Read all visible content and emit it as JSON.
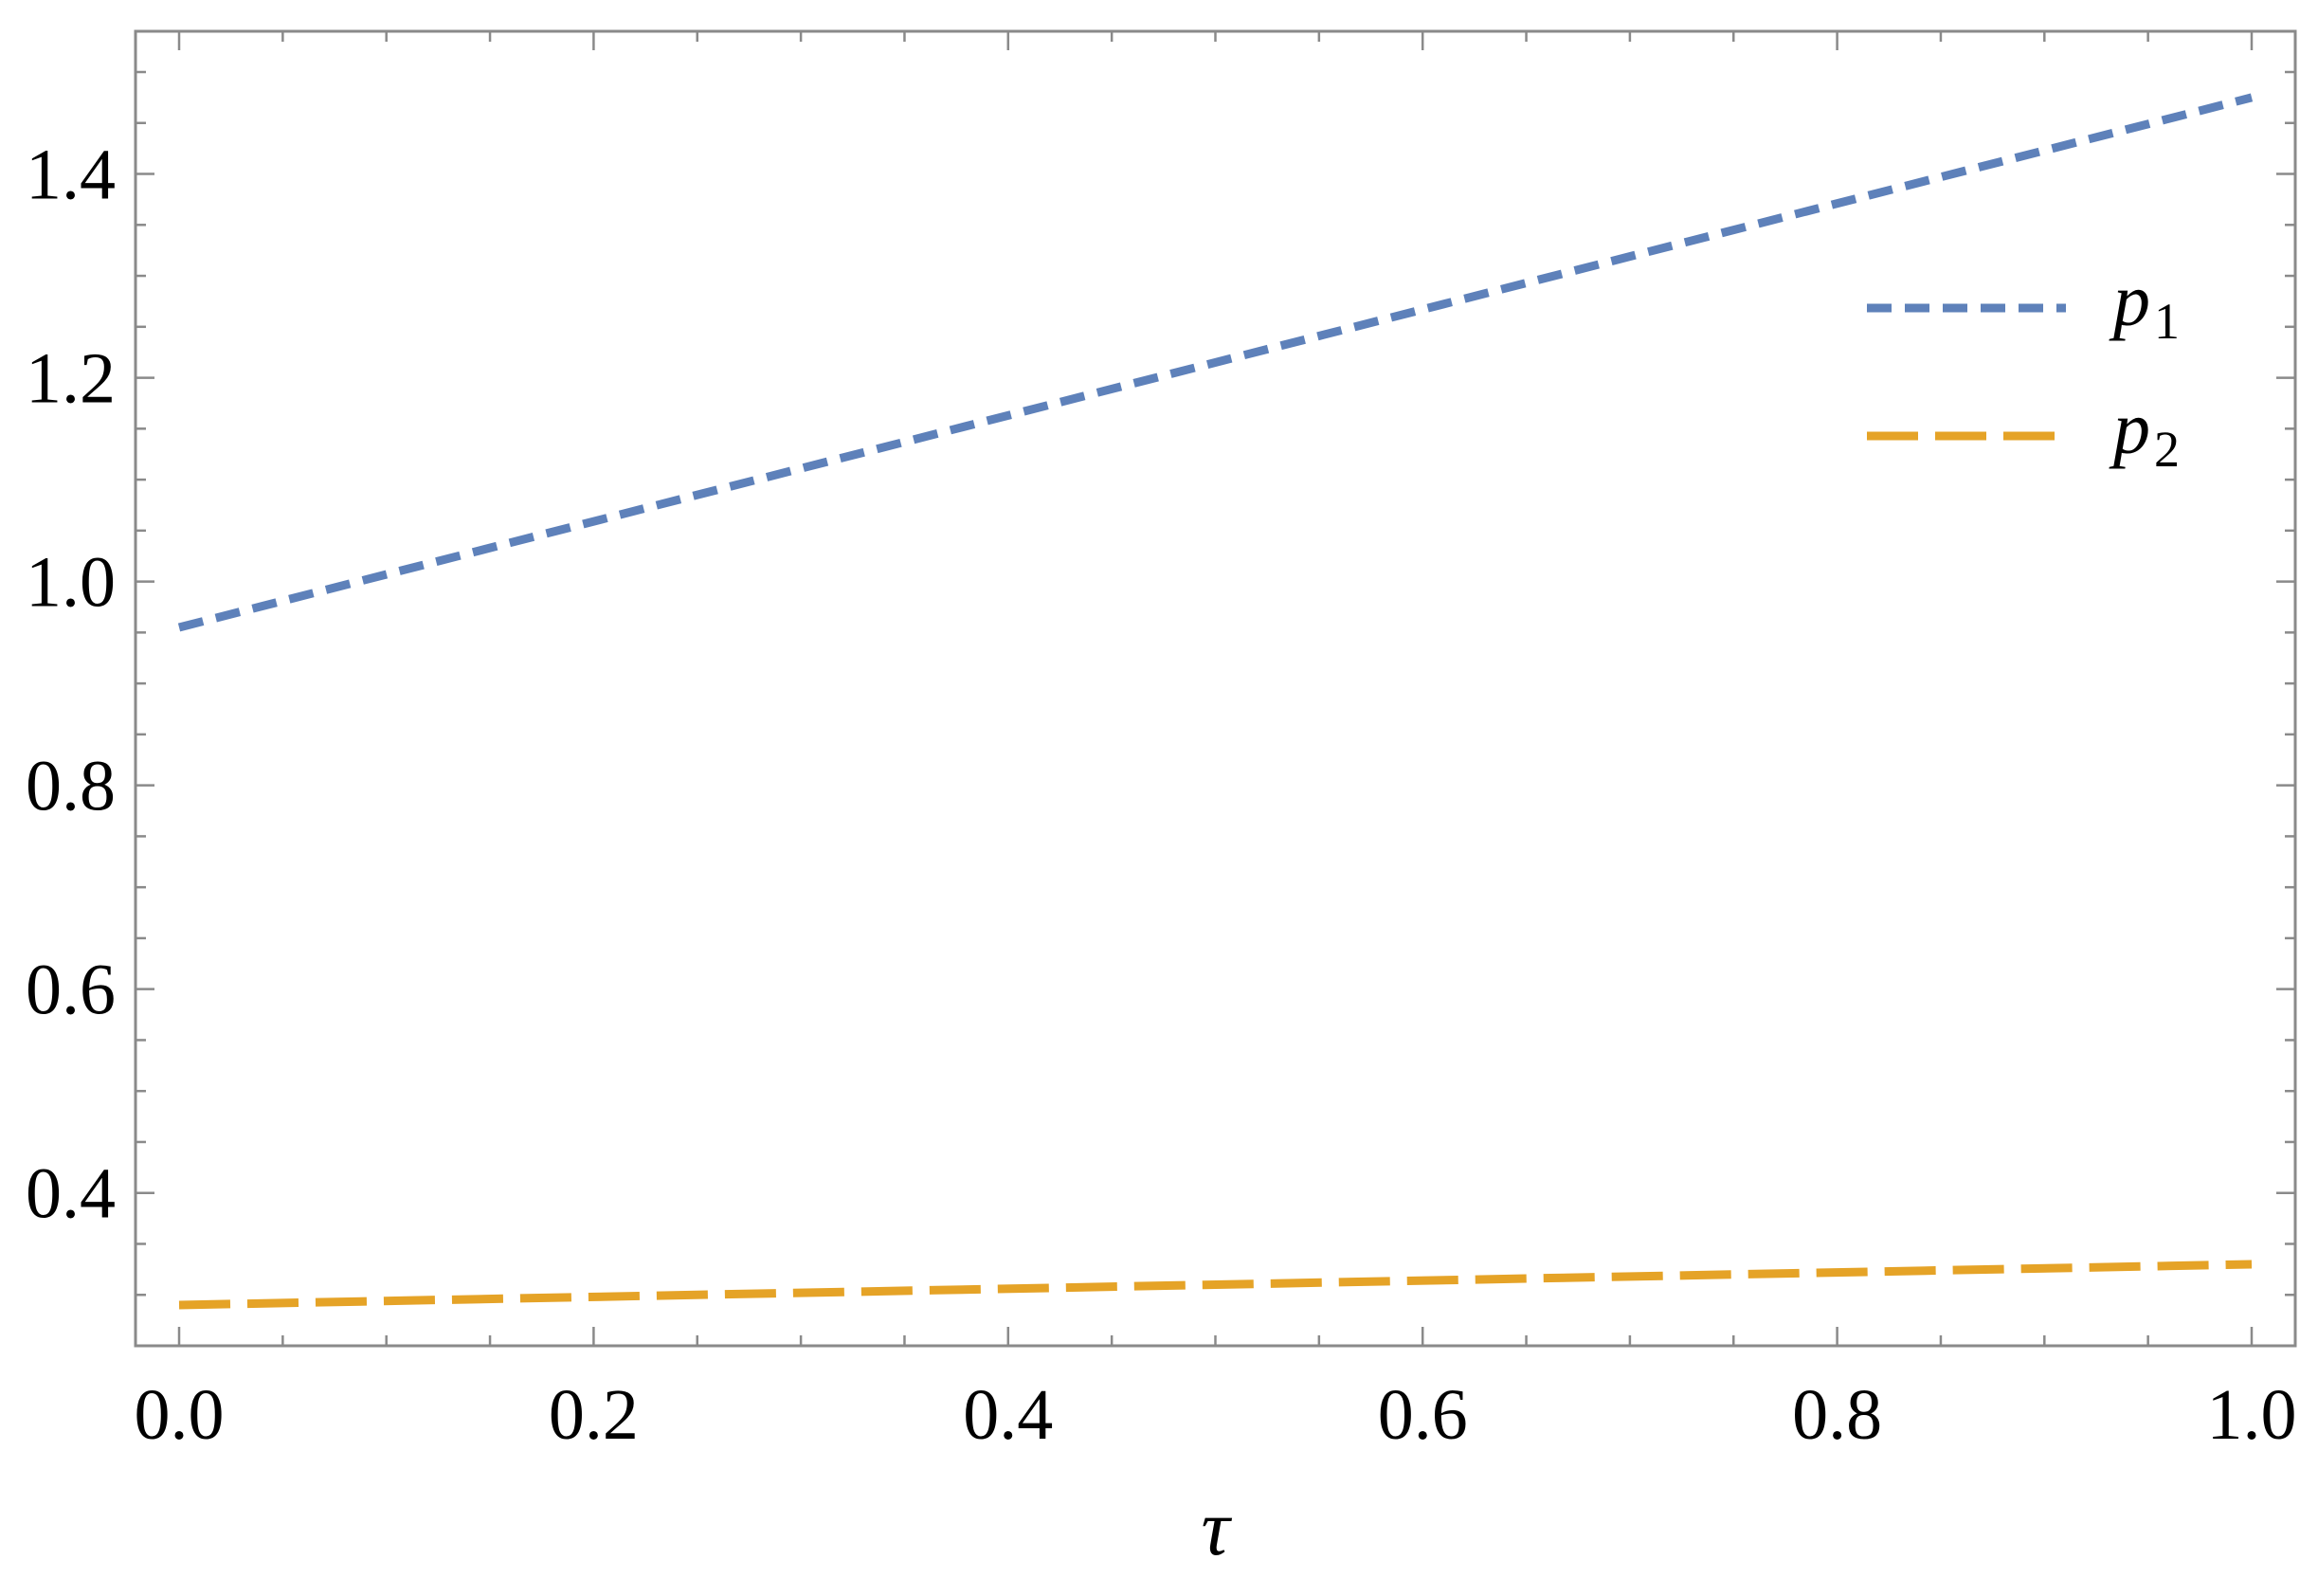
{
  "chart_data": {
    "type": "line",
    "title": "",
    "xlabel": "τ",
    "ylabel": "",
    "xlim": [
      0.0,
      1.0
    ],
    "ylim": [
      0.25,
      1.54
    ],
    "x_ticks": [
      "0.0",
      "0.2",
      "0.4",
      "0.6",
      "0.8",
      "1.0"
    ],
    "y_ticks": [
      "0.4",
      "0.6",
      "0.8",
      "1.0",
      "1.2",
      "1.4"
    ],
    "grid": false,
    "legend_position": "top-right",
    "series": [
      {
        "name": "p1",
        "name_base": "p",
        "name_sub": "1",
        "color": "#5E81BA",
        "dash": "short",
        "x": [
          0.0,
          1.0
        ],
        "y": [
          0.955,
          1.475
        ]
      },
      {
        "name": "p2",
        "name_base": "p",
        "name_sub": "2",
        "color": "#E5A327",
        "dash": "long",
        "x": [
          0.0,
          1.0
        ],
        "y": [
          0.29,
          0.33
        ]
      }
    ]
  }
}
